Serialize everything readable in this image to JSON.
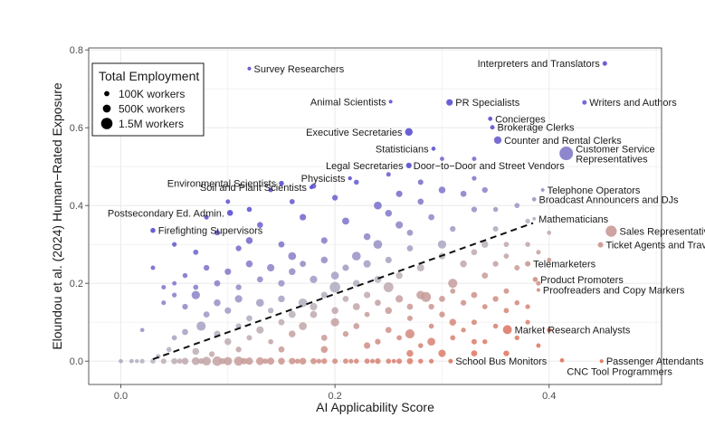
{
  "chart_data": {
    "type": "scatter",
    "xlabel": "AI Applicability Score",
    "ylabel": "Eloundou et al. (2024) Human−Rated Exposure",
    "xlim": [
      -0.03,
      0.505
    ],
    "ylim": [
      -0.06,
      0.805
    ],
    "xticks": [
      0.0,
      0.2,
      0.4
    ],
    "yticks": [
      0.0,
      0.2,
      0.4,
      0.6,
      0.8
    ],
    "xtick_labels": [
      "0.0",
      "0.2",
      "0.4"
    ],
    "ytick_labels": [
      "0.0",
      "0.2",
      "0.4",
      "0.6",
      "0.8"
    ],
    "grid": true,
    "colors": {
      "high_exposure": "#5a4fd0",
      "neutral": "#b8b4bf",
      "low_exposure": "#e0725a",
      "fit_line": "#111111",
      "grid": "#ebebeb",
      "panel_border": "#333333"
    },
    "fit_line": {
      "x": [
        0.03,
        0.385
      ],
      "y": [
        0.005,
        0.355
      ],
      "style": "dashed"
    },
    "legend": {
      "title": "Total Employment",
      "position": "top-left",
      "entries": [
        {
          "label": "100K workers",
          "workers": 100000
        },
        {
          "label": "500K workers",
          "workers": 500000
        },
        {
          "label": "1.5M workers",
          "workers": 1500000
        }
      ]
    },
    "labeled_points": [
      {
        "label": "Survey Researchers",
        "x": 0.12,
        "y": 0.752,
        "workers": 10000,
        "label_side": "right"
      },
      {
        "label": "Interpreters and Translators",
        "x": 0.452,
        "y": 0.765,
        "workers": 50000,
        "label_side": "left"
      },
      {
        "label": "Animal Scientists",
        "x": 0.252,
        "y": 0.667,
        "workers": 5000,
        "label_side": "left"
      },
      {
        "label": "PR Specialists",
        "x": 0.307,
        "y": 0.665,
        "workers": 250000,
        "label_side": "right"
      },
      {
        "label": "Writers and Authors",
        "x": 0.433,
        "y": 0.665,
        "workers": 45000,
        "label_side": "right"
      },
      {
        "label": "Concierges",
        "x": 0.345,
        "y": 0.623,
        "workers": 35000,
        "label_side": "right"
      },
      {
        "label": "Executive Secretaries",
        "x": 0.269,
        "y": 0.589,
        "workers": 450000,
        "label_side": "left"
      },
      {
        "label": "Brokerage Clerks",
        "x": 0.347,
        "y": 0.601,
        "workers": 40000,
        "label_side": "right"
      },
      {
        "label": "Counter and Rental Clerks",
        "x": 0.352,
        "y": 0.568,
        "workers": 420000,
        "label_side": "right"
      },
      {
        "label": "Statisticians",
        "x": 0.292,
        "y": 0.546,
        "workers": 30000,
        "label_side": "left"
      },
      {
        "label": "Customer Service Representatives",
        "x": 0.416,
        "y": 0.534,
        "workers": 2800000,
        "label_side": "right",
        "multiline": [
          "Customer Service",
          "Representatives"
        ]
      },
      {
        "label": "Legal Secretaries",
        "x": 0.269,
        "y": 0.503,
        "workers": 150000,
        "label_side": "left"
      },
      {
        "label": "Door−to−Door and Street Vendors",
        "x": 0.269,
        "y": 0.503,
        "workers": 6000,
        "label_side": "right"
      },
      {
        "label": "Physicists",
        "x": 0.214,
        "y": 0.47,
        "workers": 15000,
        "label_side": "left"
      },
      {
        "label": "Environmental Scientists",
        "x": 0.15,
        "y": 0.457,
        "workers": 80000,
        "label_side": "left"
      },
      {
        "label": "Soil and Plant Scientists",
        "x": 0.178,
        "y": 0.447,
        "workers": 15000,
        "label_side": "left"
      },
      {
        "label": "Telephone Operators",
        "x": 0.394,
        "y": 0.44,
        "workers": 5000,
        "label_side": "right"
      },
      {
        "label": "Broadcast Announcers and DJs",
        "x": 0.386,
        "y": 0.416,
        "workers": 30000,
        "label_side": "right"
      },
      {
        "label": "Postsecondary Ed. Admin.",
        "x": 0.102,
        "y": 0.381,
        "workers": 180000,
        "label_side": "left"
      },
      {
        "label": "Mathematicians",
        "x": 0.386,
        "y": 0.366,
        "workers": 3000,
        "label_side": "right"
      },
      {
        "label": "Firefighting Supervisors",
        "x": 0.03,
        "y": 0.336,
        "workers": 80000,
        "label_side": "right"
      },
      {
        "label": "Sales Representatives",
        "x": 0.458,
        "y": 0.334,
        "workers": 1400000,
        "label_side": "right"
      },
      {
        "label": "Ticket Agents and Travel Clerks",
        "x": 0.448,
        "y": 0.299,
        "workers": 120000,
        "label_side": "right"
      },
      {
        "label": "Telemarketers",
        "x": 0.38,
        "y": 0.25,
        "workers": 120000,
        "label_side": "right"
      },
      {
        "label": "Product Promoters",
        "x": 0.387,
        "y": 0.21,
        "workers": 80000,
        "label_side": "right"
      },
      {
        "label": "Proofreaders and Copy Markers",
        "x": 0.39,
        "y": 0.183,
        "workers": 6000,
        "label_side": "right"
      },
      {
        "label": "Market Research Analysts",
        "x": 0.361,
        "y": 0.081,
        "workers": 750000,
        "label_side": "right"
      },
      {
        "label": "CNC Tool Programmers",
        "x": 0.412,
        "y": 0.002,
        "workers": 30000,
        "label_side": "right",
        "label_dy": -0.028
      },
      {
        "label": "School Bus Monitors",
        "x": 0.308,
        "y": 0.0,
        "workers": 45000,
        "label_side": "right"
      },
      {
        "label": "Passenger Attendants",
        "x": 0.449,
        "y": 0.0,
        "workers": 10000,
        "label_side": "right"
      }
    ],
    "unlabeled_points": [
      [
        0.0,
        0.0,
        30000
      ],
      [
        0.01,
        0.0,
        40000
      ],
      [
        0.02,
        0.0,
        60000
      ],
      [
        0.03,
        0.0,
        80000
      ],
      [
        0.04,
        0.0,
        120000
      ],
      [
        0.05,
        0.0,
        200000
      ],
      [
        0.06,
        0.0,
        300000
      ],
      [
        0.07,
        0.0,
        500000
      ],
      [
        0.08,
        0.0,
        700000
      ],
      [
        0.09,
        0.0,
        900000
      ],
      [
        0.1,
        0.0,
        600000
      ],
      [
        0.11,
        0.0,
        800000
      ],
      [
        0.12,
        0.0,
        400000
      ],
      [
        0.13,
        0.0,
        500000
      ],
      [
        0.14,
        0.0,
        350000
      ],
      [
        0.15,
        0.0,
        300000
      ],
      [
        0.16,
        0.0,
        250000
      ],
      [
        0.17,
        0.0,
        300000
      ],
      [
        0.18,
        0.0,
        200000
      ],
      [
        0.19,
        0.0,
        150000
      ],
      [
        0.2,
        0.0,
        120000
      ],
      [
        0.21,
        0.0,
        100000
      ],
      [
        0.22,
        0.0,
        80000
      ],
      [
        0.23,
        0.0,
        100000
      ],
      [
        0.24,
        0.0,
        150000
      ],
      [
        0.25,
        0.0,
        90000
      ],
      [
        0.26,
        0.0,
        120000
      ],
      [
        0.27,
        0.0,
        200000
      ],
      [
        0.28,
        0.0,
        70000
      ],
      [
        0.29,
        0.0,
        60000
      ],
      [
        0.055,
        0.0,
        100000
      ],
      [
        0.075,
        0.0,
        150000
      ],
      [
        0.095,
        0.0,
        200000
      ],
      [
        0.115,
        0.0,
        250000
      ],
      [
        0.135,
        0.0,
        120000
      ],
      [
        0.165,
        0.0,
        90000
      ],
      [
        0.185,
        0.0,
        70000
      ],
      [
        0.215,
        0.0,
        60000
      ],
      [
        0.235,
        0.0,
        50000
      ],
      [
        0.255,
        0.0,
        40000
      ],
      [
        0.035,
        0.012,
        60000
      ],
      [
        0.045,
        0.03,
        80000
      ],
      [
        0.07,
        0.025,
        300000
      ],
      [
        0.085,
        0.018,
        150000
      ],
      [
        0.05,
        0.06,
        100000
      ],
      [
        0.06,
        0.075,
        200000
      ],
      [
        0.075,
        0.09,
        800000
      ],
      [
        0.09,
        0.07,
        250000
      ],
      [
        0.1,
        0.05,
        300000
      ],
      [
        0.11,
        0.09,
        150000
      ],
      [
        0.12,
        0.06,
        120000
      ],
      [
        0.13,
        0.08,
        400000
      ],
      [
        0.14,
        0.05,
        90000
      ],
      [
        0.15,
        0.1,
        200000
      ],
      [
        0.16,
        0.07,
        300000
      ],
      [
        0.17,
        0.09,
        500000
      ],
      [
        0.18,
        0.12,
        350000
      ],
      [
        0.19,
        0.06,
        200000
      ],
      [
        0.2,
        0.1,
        600000
      ],
      [
        0.21,
        0.07,
        150000
      ],
      [
        0.22,
        0.09,
        200000
      ],
      [
        0.23,
        0.12,
        100000
      ],
      [
        0.24,
        0.05,
        150000
      ],
      [
        0.25,
        0.08,
        200000
      ],
      [
        0.26,
        0.06,
        100000
      ],
      [
        0.27,
        0.11,
        120000
      ],
      [
        0.28,
        0.04,
        80000
      ],
      [
        0.29,
        0.09,
        90000
      ],
      [
        0.3,
        0.12,
        150000
      ],
      [
        0.31,
        0.06,
        100000
      ],
      [
        0.32,
        0.08,
        60000
      ],
      [
        0.33,
        0.1,
        120000
      ],
      [
        0.34,
        0.05,
        70000
      ],
      [
        0.35,
        0.09,
        80000
      ],
      [
        0.37,
        0.06,
        60000
      ],
      [
        0.38,
        0.1,
        50000
      ],
      [
        0.39,
        0.04,
        40000
      ],
      [
        0.4,
        0.08,
        60000
      ],
      [
        0.36,
        0.13,
        100000
      ],
      [
        0.29,
        0.05,
        500000
      ],
      [
        0.27,
        0.02,
        300000
      ],
      [
        0.3,
        0.02,
        400000
      ],
      [
        0.33,
        0.02,
        200000
      ],
      [
        0.36,
        0.02,
        150000
      ],
      [
        0.06,
        0.14,
        150000
      ],
      [
        0.07,
        0.17,
        600000
      ],
      [
        0.08,
        0.12,
        200000
      ],
      [
        0.09,
        0.15,
        300000
      ],
      [
        0.1,
        0.13,
        250000
      ],
      [
        0.11,
        0.16,
        400000
      ],
      [
        0.12,
        0.11,
        200000
      ],
      [
        0.13,
        0.15,
        500000
      ],
      [
        0.14,
        0.13,
        150000
      ],
      [
        0.15,
        0.16,
        300000
      ],
      [
        0.16,
        0.12,
        350000
      ],
      [
        0.17,
        0.15,
        700000
      ],
      [
        0.18,
        0.14,
        400000
      ],
      [
        0.19,
        0.17,
        250000
      ],
      [
        0.2,
        0.13,
        300000
      ],
      [
        0.21,
        0.16,
        200000
      ],
      [
        0.22,
        0.14,
        350000
      ],
      [
        0.23,
        0.17,
        250000
      ],
      [
        0.24,
        0.15,
        200000
      ],
      [
        0.25,
        0.13,
        300000
      ],
      [
        0.26,
        0.16,
        400000
      ],
      [
        0.27,
        0.14,
        200000
      ],
      [
        0.28,
        0.17,
        600000
      ],
      [
        0.29,
        0.14,
        150000
      ],
      [
        0.3,
        0.16,
        200000
      ],
      [
        0.31,
        0.18,
        100000
      ],
      [
        0.32,
        0.15,
        150000
      ],
      [
        0.33,
        0.17,
        200000
      ],
      [
        0.34,
        0.14,
        100000
      ],
      [
        0.35,
        0.16,
        150000
      ],
      [
        0.36,
        0.18,
        120000
      ],
      [
        0.37,
        0.15,
        80000
      ],
      [
        0.31,
        0.2,
        800000
      ],
      [
        0.285,
        0.165,
        1000000
      ],
      [
        0.34,
        0.22,
        200000
      ],
      [
        0.35,
        0.25,
        150000
      ],
      [
        0.36,
        0.27,
        100000
      ],
      [
        0.37,
        0.24,
        120000
      ],
      [
        0.33,
        0.28,
        200000
      ],
      [
        0.32,
        0.25,
        300000
      ],
      [
        0.3,
        0.27,
        250000
      ],
      [
        0.28,
        0.24,
        400000
      ],
      [
        0.27,
        0.29,
        200000
      ],
      [
        0.26,
        0.22,
        300000
      ],
      [
        0.25,
        0.26,
        250000
      ],
      [
        0.24,
        0.21,
        350000
      ],
      [
        0.23,
        0.25,
        400000
      ],
      [
        0.22,
        0.2,
        300000
      ],
      [
        0.21,
        0.24,
        250000
      ],
      [
        0.2,
        0.22,
        500000
      ],
      [
        0.19,
        0.26,
        300000
      ],
      [
        0.18,
        0.21,
        400000
      ],
      [
        0.17,
        0.25,
        200000
      ],
      [
        0.16,
        0.23,
        300000
      ],
      [
        0.15,
        0.2,
        250000
      ],
      [
        0.14,
        0.24,
        400000
      ],
      [
        0.13,
        0.21,
        200000
      ],
      [
        0.12,
        0.25,
        300000
      ],
      [
        0.11,
        0.19,
        150000
      ],
      [
        0.1,
        0.23,
        250000
      ],
      [
        0.09,
        0.2,
        200000
      ],
      [
        0.08,
        0.24,
        150000
      ],
      [
        0.07,
        0.19,
        100000
      ],
      [
        0.06,
        0.22,
        80000
      ],
      [
        0.05,
        0.17,
        60000
      ],
      [
        0.04,
        0.19,
        50000
      ],
      [
        0.2,
        0.19,
        1200000
      ],
      [
        0.24,
        0.3,
        700000
      ],
      [
        0.3,
        0.3,
        600000
      ],
      [
        0.34,
        0.3,
        300000
      ],
      [
        0.38,
        0.3,
        80000
      ],
      [
        0.31,
        0.34,
        150000
      ],
      [
        0.27,
        0.33,
        200000
      ],
      [
        0.23,
        0.32,
        300000
      ],
      [
        0.19,
        0.31,
        250000
      ],
      [
        0.15,
        0.3,
        200000
      ],
      [
        0.11,
        0.29,
        150000
      ],
      [
        0.07,
        0.28,
        100000
      ],
      [
        0.03,
        0.24,
        40000
      ],
      [
        0.05,
        0.3,
        60000
      ],
      [
        0.09,
        0.33,
        120000
      ],
      [
        0.13,
        0.35,
        180000
      ],
      [
        0.17,
        0.37,
        250000
      ],
      [
        0.21,
        0.36,
        350000
      ],
      [
        0.25,
        0.38,
        300000
      ],
      [
        0.29,
        0.37,
        200000
      ],
      [
        0.33,
        0.39,
        150000
      ],
      [
        0.37,
        0.4,
        100000
      ],
      [
        0.35,
        0.34,
        120000
      ],
      [
        0.28,
        0.41,
        200000
      ],
      [
        0.24,
        0.4,
        500000
      ],
      [
        0.2,
        0.42,
        150000
      ],
      [
        0.16,
        0.41,
        100000
      ],
      [
        0.12,
        0.39,
        90000
      ],
      [
        0.08,
        0.37,
        60000
      ],
      [
        0.26,
        0.43,
        250000
      ],
      [
        0.3,
        0.44,
        300000
      ],
      [
        0.32,
        0.43,
        200000
      ],
      [
        0.34,
        0.44,
        150000
      ],
      [
        0.18,
        0.45,
        100000
      ],
      [
        0.22,
        0.46,
        80000
      ],
      [
        0.28,
        0.46,
        120000
      ],
      [
        0.33,
        0.47,
        60000
      ],
      [
        0.25,
        0.48,
        50000
      ],
      [
        0.33,
        0.52,
        40000
      ],
      [
        0.3,
        0.52,
        30000
      ],
      [
        0.14,
        0.44,
        50000
      ],
      [
        0.1,
        0.41,
        40000
      ],
      [
        0.04,
        0.15,
        50000
      ],
      [
        0.02,
        0.08,
        30000
      ],
      [
        0.015,
        0.0,
        20000
      ],
      [
        0.05,
        0.2,
        40000
      ],
      [
        0.35,
        0.39,
        80000
      ],
      [
        0.38,
        0.36,
        60000
      ],
      [
        0.36,
        0.3,
        100000
      ],
      [
        0.39,
        0.28,
        50000
      ],
      [
        0.4,
        0.26,
        40000
      ],
      [
        0.4,
        0.33,
        30000
      ],
      [
        0.22,
        0.27,
        700000
      ],
      [
        0.16,
        0.27,
        500000
      ],
      [
        0.12,
        0.31,
        300000
      ],
      [
        0.26,
        0.35,
        400000
      ],
      [
        0.31,
        0.1,
        300000
      ],
      [
        0.27,
        0.07,
        800000
      ],
      [
        0.23,
        0.04,
        250000
      ],
      [
        0.19,
        0.03,
        300000
      ],
      [
        0.15,
        0.03,
        200000
      ],
      [
        0.11,
        0.03,
        150000
      ],
      [
        0.33,
        0.05,
        120000
      ],
      [
        0.38,
        0.14,
        60000
      ],
      [
        0.39,
        0.2,
        50000
      ],
      [
        0.25,
        0.19,
        1000000
      ]
    ]
  }
}
